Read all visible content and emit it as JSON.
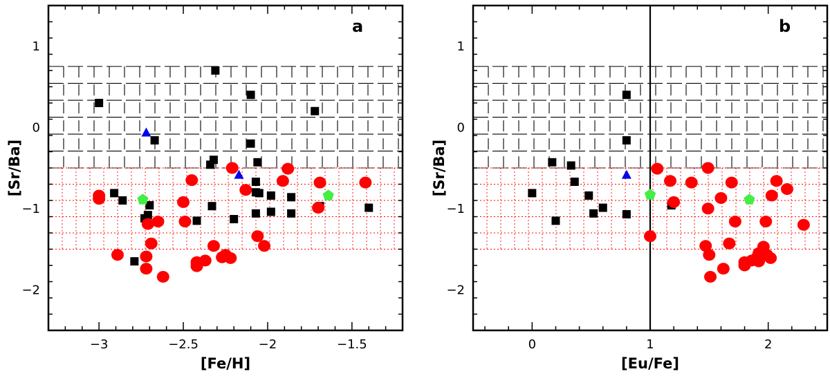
{
  "figure": {
    "panels": [
      {
        "label": "a",
        "xlabel": "[Fe/H]",
        "ylabel": "[Sr/Ba]"
      },
      {
        "label": "b",
        "xlabel": "[Eu/Fe]",
        "ylabel": "[Sr/Ba]"
      }
    ]
  },
  "chart_data": [
    {
      "type": "scatter",
      "title": "",
      "panel_label": "a",
      "xlabel": "[Fe/H]",
      "ylabel": "[Sr/Ba]",
      "xlim": [
        -3.3,
        -1.2
      ],
      "ylim": [
        -2.5,
        1.5
      ],
      "xticks": [
        -3,
        -2.5,
        -2,
        -1.5
      ],
      "xtick_labels": [
        "−3",
        "−2.5",
        "−2",
        "−1.5"
      ],
      "yticks": [
        -2,
        -1,
        0,
        1
      ],
      "ytick_labels": [
        "−2",
        "−1",
        "0",
        "1"
      ],
      "regions": [
        {
          "y0": -0.5,
          "y1": 0.75,
          "color": "#000000",
          "style": "dashed"
        },
        {
          "y0": -1.5,
          "y1": -0.5,
          "color": "#ff0000",
          "style": "dotted"
        }
      ],
      "series": [
        {
          "marker": "square",
          "color": "#000000",
          "points": [
            [
              -3.0,
              0.3
            ],
            [
              -2.91,
              -0.81
            ],
            [
              -2.86,
              -0.9
            ],
            [
              -2.7,
              -0.96
            ],
            [
              -2.67,
              -0.16
            ],
            [
              -2.71,
              -1.08
            ],
            [
              -2.73,
              -1.12
            ],
            [
              -2.79,
              -1.65
            ],
            [
              -2.42,
              -1.15
            ],
            [
              -2.31,
              0.7
            ],
            [
              -2.32,
              -0.4
            ],
            [
              -2.34,
              -0.46
            ],
            [
              -2.33,
              -0.97
            ],
            [
              -2.2,
              -1.13
            ],
            [
              -2.1,
              0.4
            ],
            [
              -2.1,
              -0.2
            ],
            [
              -2.06,
              -0.43
            ],
            [
              -2.07,
              -0.67
            ],
            [
              -2.07,
              -0.8
            ],
            [
              -2.05,
              -0.81
            ],
            [
              -2.07,
              -1.06
            ],
            [
              -1.98,
              -0.84
            ],
            [
              -1.98,
              -1.04
            ],
            [
              -1.86,
              -0.86
            ],
            [
              -1.86,
              -1.06
            ],
            [
              -1.72,
              0.2
            ],
            [
              -1.69,
              -0.97
            ],
            [
              -1.4,
              -0.99
            ]
          ]
        },
        {
          "marker": "circle",
          "color": "#ff0000",
          "points": [
            [
              -3.0,
              -0.84
            ],
            [
              -3.0,
              -0.88
            ],
            [
              -2.89,
              -1.57
            ],
            [
              -2.72,
              -1.59
            ],
            [
              -2.72,
              -1.74
            ],
            [
              -2.71,
              -1.19
            ],
            [
              -2.69,
              -1.43
            ],
            [
              -2.65,
              -1.16
            ],
            [
              -2.62,
              -1.84
            ],
            [
              -2.5,
              -0.92
            ],
            [
              -2.49,
              -1.16
            ],
            [
              -2.45,
              -0.65
            ],
            [
              -2.42,
              -1.66
            ],
            [
              -2.42,
              -1.71
            ],
            [
              -2.37,
              -1.64
            ],
            [
              -2.32,
              -1.46
            ],
            [
              -2.27,
              -1.6
            ],
            [
              -2.25,
              -1.57
            ],
            [
              -2.22,
              -1.61
            ],
            [
              -2.21,
              -0.5
            ],
            [
              -2.13,
              -0.77
            ],
            [
              -2.06,
              -1.34
            ],
            [
              -2.02,
              -1.46
            ],
            [
              -1.91,
              -0.66
            ],
            [
              -1.88,
              -0.51
            ],
            [
              -1.7,
              -0.99
            ],
            [
              -1.69,
              -0.68
            ],
            [
              -1.42,
              -0.68
            ]
          ]
        },
        {
          "marker": "triangle",
          "color": "#0000ee",
          "points": [
            [
              -2.72,
              -0.07
            ],
            [
              -2.17,
              -0.59
            ]
          ]
        },
        {
          "marker": "pentagon",
          "color": "#44ee44",
          "points": [
            [
              -2.74,
              -0.89
            ],
            [
              -1.64,
              -0.84
            ]
          ]
        }
      ]
    },
    {
      "type": "scatter",
      "title": "",
      "panel_label": "b",
      "xlabel": "[Eu/Fe]",
      "ylabel": "[Sr/Ba]",
      "xlim": [
        -0.5,
        2.5
      ],
      "ylim": [
        -2.5,
        1.5
      ],
      "xticks": [
        0,
        1,
        2
      ],
      "xtick_labels": [
        "0",
        "1",
        "2"
      ],
      "yticks": [
        -2,
        -1,
        0,
        1
      ],
      "ytick_labels": [
        "−2",
        "−1",
        "0",
        "1"
      ],
      "vline": 1,
      "regions": [
        {
          "y0": -0.5,
          "y1": 0.75,
          "color": "#000000",
          "style": "dashed"
        },
        {
          "y0": -1.5,
          "y1": -0.5,
          "color": "#ff0000",
          "style": "dotted"
        }
      ],
      "series": [
        {
          "marker": "square",
          "color": "#000000",
          "points": [
            [
              0.0,
              -0.81
            ],
            [
              0.17,
              -0.43
            ],
            [
              0.2,
              -1.15
            ],
            [
              0.33,
              -0.47
            ],
            [
              0.36,
              -0.67
            ],
            [
              0.48,
              -0.84
            ],
            [
              0.52,
              -1.06
            ],
            [
              0.6,
              -0.99
            ],
            [
              0.8,
              0.4
            ],
            [
              0.8,
              -0.16
            ],
            [
              0.8,
              -1.07
            ],
            [
              1.18,
              -0.96
            ]
          ]
        },
        {
          "marker": "circle",
          "color": "#ff0000",
          "points": [
            [
              1.0,
              -1.34
            ],
            [
              1.06,
              -0.51
            ],
            [
              1.17,
              -0.66
            ],
            [
              1.2,
              -0.92
            ],
            [
              1.35,
              -0.68
            ],
            [
              1.47,
              -1.46
            ],
            [
              1.49,
              -0.5
            ],
            [
              1.49,
              -1.0
            ],
            [
              1.5,
              -1.57
            ],
            [
              1.51,
              -1.84
            ],
            [
              1.6,
              -0.87
            ],
            [
              1.62,
              -1.74
            ],
            [
              1.67,
              -1.43
            ],
            [
              1.69,
              -0.68
            ],
            [
              1.72,
              -1.16
            ],
            [
              1.8,
              -1.66
            ],
            [
              1.8,
              -1.7
            ],
            [
              1.86,
              -1.64
            ],
            [
              1.9,
              -1.61
            ],
            [
              1.92,
              -1.55
            ],
            [
              1.92,
              -1.65
            ],
            [
              1.96,
              -1.47
            ],
            [
              1.98,
              -1.16
            ],
            [
              1.99,
              -1.57
            ],
            [
              2.02,
              -1.61
            ],
            [
              2.03,
              -0.84
            ],
            [
              2.07,
              -0.66
            ],
            [
              2.16,
              -0.76
            ],
            [
              2.3,
              -1.2
            ]
          ]
        },
        {
          "marker": "triangle",
          "color": "#0000ee",
          "points": [
            [
              0.8,
              -0.59
            ]
          ]
        },
        {
          "marker": "pentagon",
          "color": "#44ee44",
          "points": [
            [
              1.0,
              -0.83
            ],
            [
              1.84,
              -0.89
            ]
          ]
        }
      ]
    }
  ]
}
